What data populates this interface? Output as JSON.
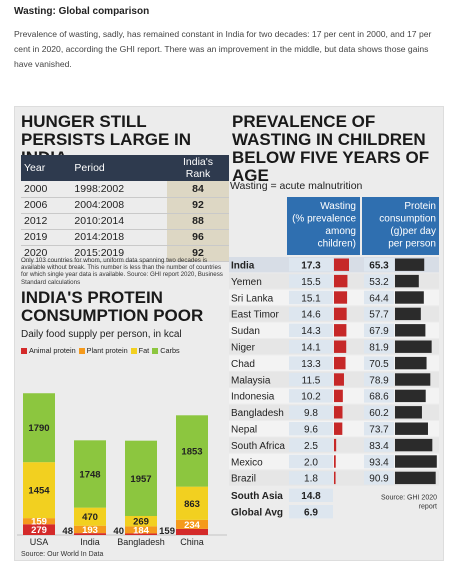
{
  "article": {
    "heading": "Wasting: Global comparison",
    "paragraph": "Prevalence of wasting, sadly, has remained constant in India for two decades: 17 per cent in 2000, and 17 per cent in 2020, according the GHI report. There was an improvement in the middle, but data shows those gains have vanished."
  },
  "ghi_panel": {
    "title": "HUNGER STILL PERSISTS LARGE IN INDIA",
    "columns": [
      "Year",
      "Period",
      "India's Rank"
    ],
    "rows": [
      {
        "year": "2000",
        "period": "1998:2002",
        "rank": "84"
      },
      {
        "year": "2006",
        "period": "2004:2008",
        "rank": "92"
      },
      {
        "year": "2012",
        "period": "2010:2014",
        "rank": "88"
      },
      {
        "year": "2019",
        "period": "2014:2018",
        "rank": "96"
      },
      {
        "year": "2020",
        "period": "2015:2019",
        "rank": "92"
      }
    ],
    "note": "Only 103 countries for whom, uniform data spanning two decades is available without break. This number is less than the number of countries for which single year data is available. Source: GHI report 2020, Business Standard calculations"
  },
  "colors": {
    "animal": "#d42a2a",
    "plant": "#f59a1c",
    "fat": "#f2d020",
    "carbs": "#8cc63f",
    "header_dark": "#2e3a4e",
    "wasting_bar": "#c62828",
    "protein_bar": "#2b2b2b",
    "table_blue": "#2f6fb0",
    "table_light": "#dde6ef"
  },
  "chart_data": [
    {
      "type": "bar",
      "stacked": true,
      "title": "INDIA'S PROTEIN CONSUMPTION POOR",
      "subtitle": "Daily food supply per person, in kcal",
      "categories": [
        "USA",
        "India",
        "Bangladesh",
        "China"
      ],
      "series": [
        {
          "name": "Animal protein",
          "values": [
            279,
            48,
            40,
            159
          ]
        },
        {
          "name": "Plant protein",
          "values": [
            159,
            193,
            184,
            234
          ]
        },
        {
          "name": "Fat",
          "values": [
            1454,
            470,
            269,
            863
          ]
        },
        {
          "name": "Carbs",
          "values": [
            1790,
            1748,
            1957,
            1853
          ]
        }
      ],
      "legend_position": "top",
      "source": "Source: Our World In Data"
    },
    {
      "type": "table",
      "title": "PREVALENCE OF WASTING IN CHILDREN BELOW FIVE YEARS OF AGE",
      "definition": "Wasting = acute malnutrition",
      "columns": [
        "Wasting (% prevalence among children)",
        "Protein consumption (g)per day per person"
      ],
      "rows": [
        {
          "country": "India",
          "wasting": 17.3,
          "protein": 65.3,
          "highlight": true
        },
        {
          "country": "Yemen",
          "wasting": 15.5,
          "protein": 53.2
        },
        {
          "country": "Sri Lanka",
          "wasting": 15.1,
          "protein": 64.4
        },
        {
          "country": "East Timor",
          "wasting": 14.6,
          "protein": 57.7
        },
        {
          "country": "Sudan",
          "wasting": 14.3,
          "protein": 67.9
        },
        {
          "country": "Niger",
          "wasting": 14.1,
          "protein": 81.9
        },
        {
          "country": "Chad",
          "wasting": 13.3,
          "protein": 70.5
        },
        {
          "country": "Malaysia",
          "wasting": 11.5,
          "protein": 78.9
        },
        {
          "country": "Indonesia",
          "wasting": 10.2,
          "protein": 68.6
        },
        {
          "country": "Bangladesh",
          "wasting": 9.8,
          "protein": 60.2
        },
        {
          "country": "Nepal",
          "wasting": 9.6,
          "protein": 73.7
        },
        {
          "country": "South Africa",
          "wasting": 2.5,
          "protein": 83.4
        },
        {
          "country": "Mexico",
          "wasting": 2.0,
          "protein": 93.4
        },
        {
          "country": "Brazil",
          "wasting": 1.8,
          "protein": 90.9
        }
      ],
      "footer_rows": [
        {
          "country": "South Asia",
          "wasting": 14.8
        },
        {
          "country": "Global Avg",
          "wasting": 6.9
        }
      ],
      "source": "Source: GHI 2020 report"
    }
  ]
}
